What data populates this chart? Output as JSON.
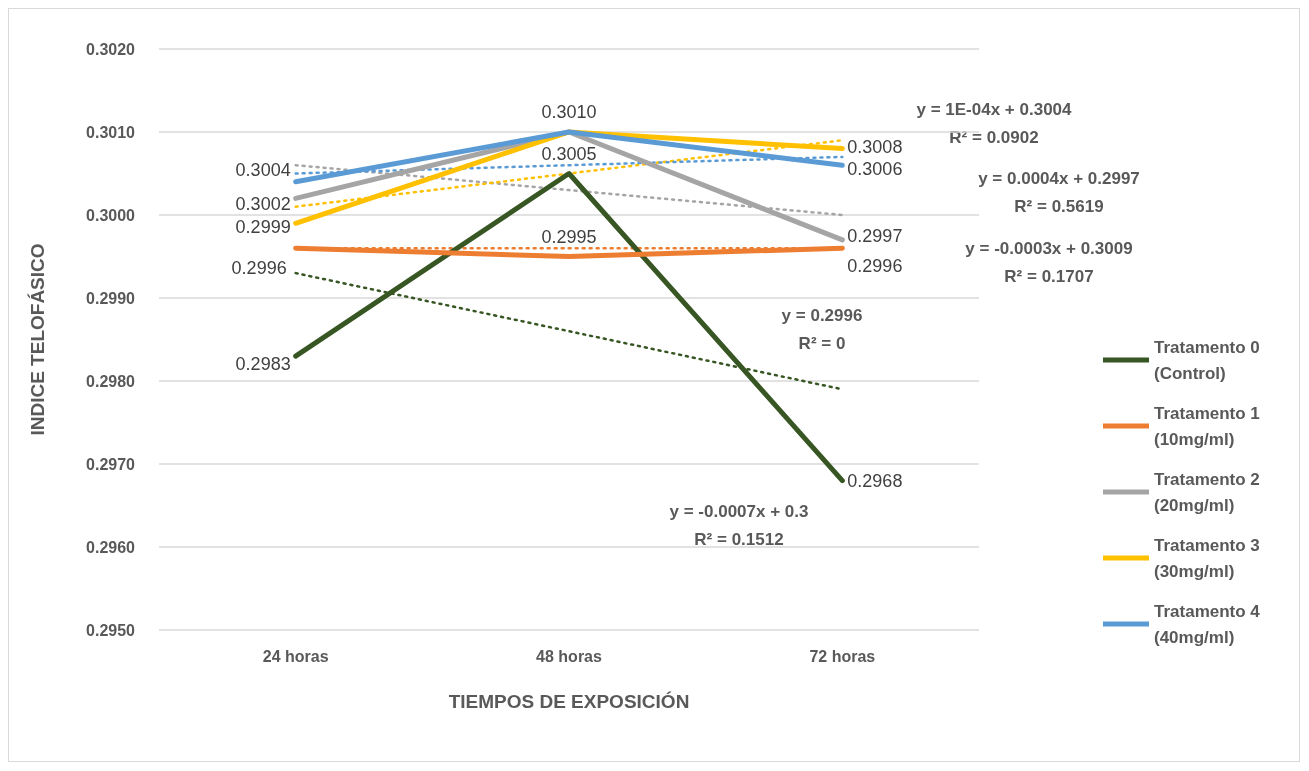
{
  "chart_data": {
    "type": "line",
    "xlabel": "TIEMPOS DE EXPOSICIÓN",
    "ylabel": "INDICE TELOFÁSICO",
    "categories": [
      "24 horas",
      "48 horas",
      "72 horas"
    ],
    "ylim": [
      0.295,
      0.302
    ],
    "yticks": [
      {
        "value": 0.295,
        "label": "0.2950"
      },
      {
        "value": 0.296,
        "label": "0.2960"
      },
      {
        "value": 0.297,
        "label": "0.2970"
      },
      {
        "value": 0.298,
        "label": "0.2980"
      },
      {
        "value": 0.299,
        "label": "0.2990"
      },
      {
        "value": 0.3,
        "label": "0.3000"
      },
      {
        "value": 0.301,
        "label": "0.3010"
      },
      {
        "value": 0.302,
        "label": "0.3020"
      }
    ],
    "grid": "y",
    "legend": "right",
    "marker": "none",
    "line_style": "solid",
    "series": [
      {
        "name": "Tratamento 0 (Control)",
        "color": "#375623",
        "values": [
          0.2983,
          0.3005,
          0.2968
        ],
        "value_labels": [
          "0.2983",
          "0.3005",
          "0.2968"
        ]
      },
      {
        "name": "Tratamento 1 (10mg/ml)",
        "color": "#ed7d31",
        "values": [
          0.2996,
          0.2995,
          0.2996
        ],
        "value_labels": [
          "0.2996",
          "0.2995",
          "0.2996"
        ]
      },
      {
        "name": "Tratamento 2 (20mg/ml)",
        "color": "#a5a5a5",
        "values": [
          0.3002,
          0.301,
          0.2997
        ],
        "value_labels": [
          "0.3002",
          null,
          "0.2997"
        ]
      },
      {
        "name": "Tratamento 3 (30mg/ml)",
        "color": "#ffc000",
        "values": [
          0.2999,
          0.301,
          0.3008
        ],
        "value_labels": [
          "0.2999",
          null,
          "0.3008"
        ]
      },
      {
        "name": "Tratamento 4 (40mg/ml)",
        "color": "#5b9bd5",
        "values": [
          0.3004,
          0.301,
          0.3006
        ],
        "value_labels": [
          "0.3004",
          "0.3010",
          "0.3006"
        ]
      },
      {
        "type": "line",
        "line_style": "dotted",
        "color": "#375623",
        "x": [
          "24 horas",
          "48 horas",
          "72 horas"
        ],
        "values": [
          0.2993,
          0.2986,
          0.2979
        ]
      },
      {
        "type": "line",
        "line_style": "dotted",
        "color": "#ed7d31",
        "x": [
          "24 horas",
          "48 horas",
          "72 horas"
        ],
        "values": [
          0.2996,
          0.2996,
          0.2996
        ]
      },
      {
        "type": "line",
        "line_style": "dotted",
        "color": "#a5a5a5",
        "x": [
          "24 horas",
          "48 horas",
          "72 horas"
        ],
        "values": [
          0.3006,
          0.3003,
          0.3
        ]
      },
      {
        "type": "line",
        "line_style": "dotted",
        "color": "#ffc000",
        "x": [
          "24 horas",
          "48 horas",
          "72 horas"
        ],
        "values": [
          0.3001,
          0.3005,
          0.3009
        ]
      },
      {
        "type": "line",
        "line_style": "dotted",
        "color": "#5b9bd5",
        "x": [
          "24 horas",
          "48 horas",
          "72 horas"
        ],
        "values": [
          0.3005,
          0.3006,
          0.3007
        ]
      }
    ],
    "annotations": [
      "y = 1E-04x + 0.3004\nR² = 0.0902",
      "y = 0.0004x + 0.2997\nR² = 0.5619",
      "y = -0.0003x + 0.3009\nR² = 0.1707",
      "y = 0.2996\nR² = 0",
      "y = -0.0007x + 0.3\nR² = 0.1512"
    ]
  }
}
